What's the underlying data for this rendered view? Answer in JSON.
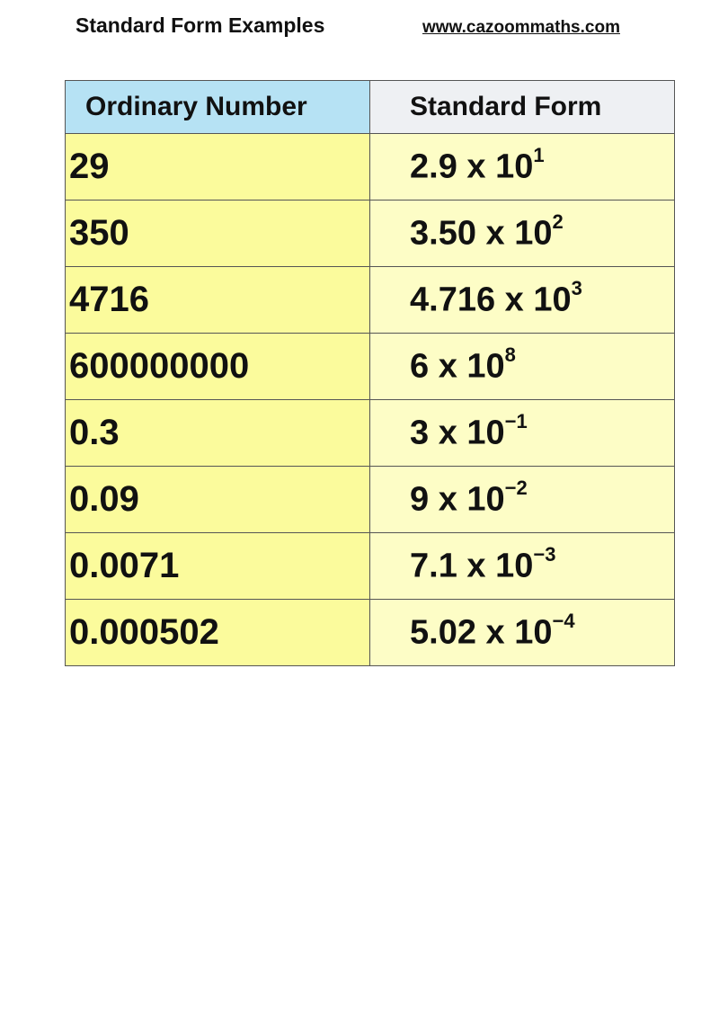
{
  "header": {
    "title": "Standard Form Examples",
    "website": "www.cazoommaths.com"
  },
  "table": {
    "columns": [
      "Ordinary Number",
      "Standard Form"
    ],
    "colors": {
      "header_left": "#b6e2f4",
      "header_right": "#eef0f3",
      "cell_left": "#fbfb9c",
      "cell_right": "#fdfdc6"
    },
    "rows": [
      {
        "ordinary": "29",
        "mantissa": "2.9 x 10",
        "exponent": "1"
      },
      {
        "ordinary": "350",
        "mantissa": "3.50 x 10",
        "exponent": "2"
      },
      {
        "ordinary": "4716",
        "mantissa": "4.716 x 10",
        "exponent": "3"
      },
      {
        "ordinary": "600000000",
        "mantissa": "6 x 10",
        "exponent": "8"
      },
      {
        "ordinary": "0.3",
        "mantissa": "3 x 10",
        "exponent": "−1"
      },
      {
        "ordinary": "0.09",
        "mantissa": "9 x 10",
        "exponent": "−2"
      },
      {
        "ordinary": "0.0071",
        "mantissa": "7.1 x 10",
        "exponent": "−3"
      },
      {
        "ordinary": "0.000502",
        "mantissa": "5.02 x 10",
        "exponent": "−4"
      }
    ]
  }
}
